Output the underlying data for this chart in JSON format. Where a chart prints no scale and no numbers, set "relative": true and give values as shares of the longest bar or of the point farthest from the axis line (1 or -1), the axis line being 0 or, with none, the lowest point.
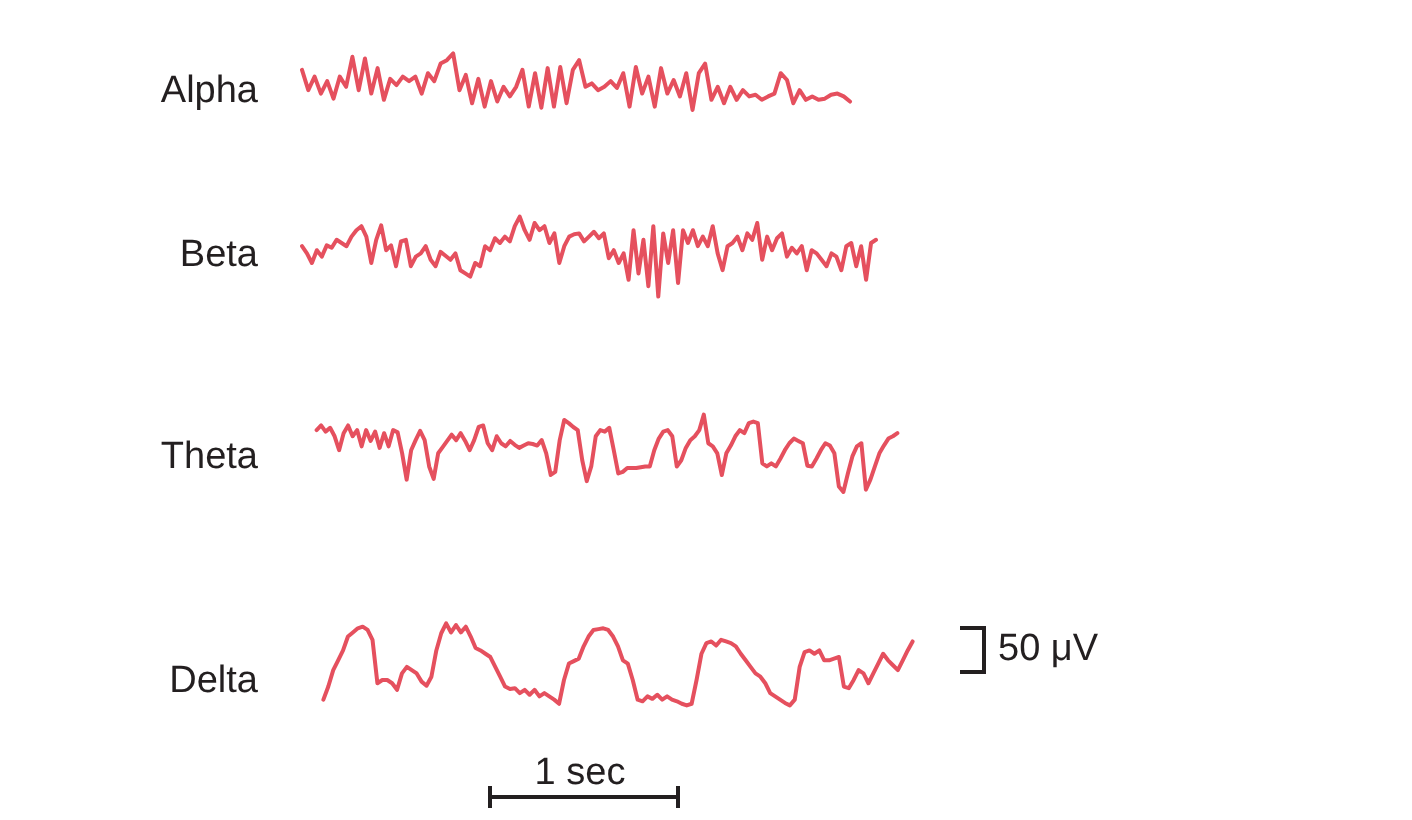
{
  "chart_data": [
    {
      "type": "line",
      "relative": true,
      "marker": "none",
      "line_style": "solid",
      "tick_labels": false,
      "categories": [
        null,
        null,
        null,
        null,
        null,
        null,
        null,
        null,
        null,
        null,
        null,
        null,
        null,
        null,
        null,
        null,
        null,
        null,
        null,
        null,
        null,
        null,
        null,
        null,
        null,
        null,
        null,
        null,
        null,
        null,
        null,
        null,
        null,
        null,
        null,
        null,
        null,
        null,
        null,
        null,
        null,
        null,
        null,
        null,
        null,
        null,
        null,
        null,
        null,
        null,
        null,
        null,
        null,
        null,
        null,
        null,
        null,
        null,
        null,
        null,
        null,
        null,
        null,
        null,
        null,
        null,
        null,
        null,
        null,
        null,
        null,
        null,
        null,
        null,
        null,
        null,
        null,
        null,
        null,
        null,
        null,
        null,
        null,
        null,
        null,
        null,
        null,
        null
      ],
      "series": [
        {
          "name": "Alpha",
          "color": "#e5505e",
          "values": [
            0.71,
            0.35,
            0.59,
            0.29,
            0.51,
            0.2,
            0.59,
            0.41,
            0.94,
            0.35,
            0.91,
            0.29,
            0.74,
            0.18,
            0.55,
            0.44,
            0.59,
            0.51,
            0.59,
            0.29,
            0.65,
            0.51,
            0.82,
            0.88,
            1,
            0.35,
            0.62,
            0.12,
            0.55,
            0.06,
            0.51,
            0.15,
            0.41,
            0.24,
            0.41,
            0.71,
            0.06,
            0.65,
            0.04,
            0.74,
            0.06,
            0.76,
            0.12,
            0.71,
            0.88,
            0.41,
            0.47,
            0.35,
            0.41,
            0.51,
            0.39,
            0.65,
            0.06,
            0.76,
            0.29,
            0.59,
            0.06,
            0.74,
            0.29,
            0.53,
            0.24,
            0.65,
            0,
            0.65,
            0.82,
            0.18,
            0.41,
            0.12,
            0.41,
            0.18,
            0.35,
            0.24,
            0.27,
            0.18,
            0.24,
            0.29,
            0.65,
            0.53,
            0.12,
            0.35,
            0.18,
            0.24,
            0.18,
            0.2,
            0.27,
            0.29,
            0.24,
            0.15
          ]
        }
      ]
    },
    {
      "type": "line",
      "relative": true,
      "marker": "none",
      "line_style": "solid",
      "tick_labels": false,
      "categories": [
        null,
        null,
        null,
        null,
        null,
        null,
        null,
        null,
        null,
        null,
        null,
        null,
        null,
        null,
        null,
        null,
        null,
        null,
        null,
        null,
        null,
        null,
        null,
        null,
        null,
        null,
        null,
        null,
        null,
        null,
        null,
        null,
        null,
        null,
        null,
        null,
        null,
        null,
        null,
        null,
        null,
        null,
        null,
        null,
        null,
        null,
        null,
        null,
        null,
        null,
        null,
        null,
        null,
        null,
        null,
        null,
        null,
        null,
        null,
        null,
        null,
        null,
        null,
        null,
        null,
        null,
        null,
        null,
        null,
        null,
        null,
        null,
        null,
        null,
        null,
        null,
        null,
        null,
        null,
        null,
        null,
        null,
        null,
        null,
        null,
        null,
        null,
        null,
        null,
        null,
        null,
        null,
        null,
        null,
        null,
        null,
        null,
        null,
        null,
        null,
        null,
        null,
        null,
        null,
        null,
        null,
        null,
        null,
        null,
        null,
        null,
        null,
        null,
        null,
        null,
        null,
        null
      ],
      "series": [
        {
          "name": "Beta",
          "color": "#e5505e",
          "values": [
            0.63,
            0.54,
            0.42,
            0.58,
            0.5,
            0.64,
            0.61,
            0.71,
            0.67,
            0.63,
            0.75,
            0.83,
            0.88,
            0.75,
            0.42,
            0.71,
            0.89,
            0.58,
            0.64,
            0.38,
            0.69,
            0.71,
            0.38,
            0.5,
            0.54,
            0.63,
            0.46,
            0.38,
            0.56,
            0.51,
            0.46,
            0.54,
            0.33,
            0.29,
            0.25,
            0.42,
            0.38,
            0.63,
            0.58,
            0.73,
            0.67,
            0.75,
            0.69,
            0.88,
            1,
            0.83,
            0.71,
            0.92,
            0.83,
            0.88,
            0.67,
            0.79,
            0.42,
            0.63,
            0.75,
            0.78,
            0.79,
            0.69,
            0.75,
            0.81,
            0.73,
            0.79,
            0.48,
            0.58,
            0.42,
            0.54,
            0.21,
            0.83,
            0.29,
            0.71,
            0.13,
            0.88,
            0,
            0.79,
            0.42,
            0.83,
            0.17,
            0.83,
            0.67,
            0.83,
            0.63,
            0.75,
            0.63,
            0.88,
            0.54,
            0.33,
            0.63,
            0.67,
            0.75,
            0.58,
            0.79,
            0.71,
            0.92,
            0.46,
            0.75,
            0.58,
            0.73,
            0.79,
            0.5,
            0.61,
            0.54,
            0.63,
            0.33,
            0.58,
            0.54,
            0.46,
            0.38,
            0.54,
            0.5,
            0.33,
            0.63,
            0.67,
            0.38,
            0.63,
            0.21,
            0.67,
            0.71
          ]
        }
      ]
    },
    {
      "type": "line",
      "relative": true,
      "marker": "none",
      "line_style": "solid",
      "tick_labels": false,
      "categories": [
        null,
        null,
        null,
        null,
        null,
        null,
        null,
        null,
        null,
        null,
        null,
        null,
        null,
        null,
        null,
        null,
        null,
        null,
        null,
        null,
        null,
        null,
        null,
        null,
        null,
        null,
        null,
        null,
        null,
        null,
        null,
        null,
        null,
        null,
        null,
        null,
        null,
        null,
        null,
        null,
        null,
        null,
        null,
        null,
        null,
        null,
        null,
        null,
        null,
        null,
        null,
        null,
        null,
        null,
        null,
        null,
        null,
        null,
        null,
        null,
        null,
        null,
        null,
        null,
        null,
        null,
        null,
        null,
        null,
        null,
        null,
        null,
        null,
        null,
        null,
        null,
        null,
        null,
        null,
        null,
        null,
        null,
        null,
        null,
        null,
        null,
        null,
        null,
        null,
        null,
        null,
        null,
        null,
        null,
        null,
        null,
        null,
        null,
        null,
        null,
        null,
        null,
        null,
        null,
        null,
        null,
        null,
        null,
        null,
        null,
        null,
        null,
        null,
        null,
        null,
        null,
        null,
        null,
        null,
        null,
        null,
        null,
        null,
        null,
        null,
        null,
        null,
        null,
        null,
        null
      ],
      "series": [
        {
          "name": "Theta",
          "color": "#e5505e",
          "values": [
            0.8,
            0.86,
            0.78,
            0.83,
            0.72,
            0.54,
            0.76,
            0.86,
            0.72,
            0.8,
            0.59,
            0.8,
            0.66,
            0.78,
            0.57,
            0.76,
            0.59,
            0.8,
            0.77,
            0.5,
            0.16,
            0.54,
            0.67,
            0.79,
            0.67,
            0.33,
            0.17,
            0.5,
            0.58,
            0.66,
            0.74,
            0.67,
            0.76,
            0.66,
            0.54,
            0.67,
            0.84,
            0.86,
            0.63,
            0.54,
            0.72,
            0.63,
            0.59,
            0.66,
            0.61,
            0.57,
            0.6,
            0.63,
            0.62,
            0.6,
            0.67,
            0.5,
            0.22,
            0.26,
            0.67,
            0.93,
            0.89,
            0.84,
            0.8,
            0.41,
            0.14,
            0.33,
            0.72,
            0.8,
            0.78,
            0.83,
            0.54,
            0.24,
            0.26,
            0.31,
            0.31,
            0.31,
            0.32,
            0.33,
            0.33,
            0.54,
            0.69,
            0.78,
            0.8,
            0.72,
            0.33,
            0.41,
            0.57,
            0.67,
            0.72,
            0.8,
            1,
            0.63,
            0.59,
            0.5,
            0.22,
            0.5,
            0.6,
            0.72,
            0.8,
            0.76,
            0.89,
            0.91,
            0.89,
            0.37,
            0.33,
            0.37,
            0.33,
            0.43,
            0.54,
            0.63,
            0.69,
            0.66,
            0.63,
            0.34,
            0.33,
            0.43,
            0.54,
            0.63,
            0.6,
            0.5,
            0.07,
            0,
            0.24,
            0.46,
            0.59,
            0.63,
            0.03,
            0.16,
            0.33,
            0.5,
            0.6,
            0.69,
            0.72,
            0.76
          ]
        }
      ]
    },
    {
      "type": "line",
      "relative": true,
      "marker": "none",
      "line_style": "solid",
      "tick_labels": false,
      "categories": [
        null,
        null,
        null,
        null,
        null,
        null,
        null,
        null,
        null,
        null,
        null,
        null,
        null,
        null,
        null,
        null,
        null,
        null,
        null,
        null,
        null,
        null,
        null,
        null,
        null,
        null,
        null,
        null,
        null,
        null,
        null,
        null,
        null,
        null,
        null,
        null,
        null,
        null,
        null,
        null,
        null,
        null,
        null,
        null,
        null,
        null,
        null,
        null,
        null,
        null,
        null,
        null,
        null,
        null,
        null,
        null,
        null,
        null,
        null,
        null,
        null,
        null,
        null,
        null,
        null,
        null,
        null,
        null,
        null,
        null,
        null,
        null,
        null,
        null,
        null,
        null,
        null,
        null,
        null,
        null,
        null,
        null,
        null,
        null,
        null,
        null,
        null,
        null,
        null,
        null,
        null,
        null,
        null,
        null,
        null,
        null,
        null,
        null,
        null,
        null,
        null,
        null,
        null,
        null,
        null,
        null,
        null,
        null,
        null,
        null,
        null,
        null,
        null,
        null,
        null,
        null,
        null,
        null,
        null,
        null,
        null
      ],
      "series": [
        {
          "name": "Delta",
          "color": "#e5505e",
          "values": [
            0.07,
            0.23,
            0.43,
            0.55,
            0.67,
            0.84,
            0.89,
            0.94,
            0.96,
            0.92,
            0.8,
            0.27,
            0.31,
            0.31,
            0.27,
            0.19,
            0.39,
            0.47,
            0.43,
            0.39,
            0.29,
            0.24,
            0.35,
            0.67,
            0.88,
            1,
            0.89,
            0.98,
            0.89,
            0.96,
            0.84,
            0.7,
            0.67,
            0.63,
            0.59,
            0.47,
            0.35,
            0.23,
            0.2,
            0.21,
            0.15,
            0.19,
            0.13,
            0.19,
            0.11,
            0.15,
            0.11,
            0.07,
            0.02,
            0.31,
            0.51,
            0.54,
            0.57,
            0.72,
            0.84,
            0.92,
            0.93,
            0.94,
            0.92,
            0.84,
            0.72,
            0.55,
            0.51,
            0.31,
            0.07,
            0.05,
            0.11,
            0.08,
            0.13,
            0.07,
            0.11,
            0.07,
            0.05,
            0.02,
            0,
            0.02,
            0.31,
            0.63,
            0.76,
            0.78,
            0.73,
            0.8,
            0.78,
            0.76,
            0.72,
            0.63,
            0.55,
            0.47,
            0.39,
            0.35,
            0.27,
            0.15,
            0.11,
            0.07,
            0.03,
            0,
            0.07,
            0.47,
            0.65,
            0.67,
            0.63,
            0.67,
            0.55,
            0.55,
            0.57,
            0.59,
            0.23,
            0.21,
            0.31,
            0.43,
            0.39,
            0.27,
            0.39,
            0.51,
            0.63,
            0.55,
            0.49,
            0.43,
            0.55,
            0.67,
            0.78
          ]
        }
      ],
      "annotations": [
        "50 μV",
        "1 sec"
      ]
    }
  ]
}
